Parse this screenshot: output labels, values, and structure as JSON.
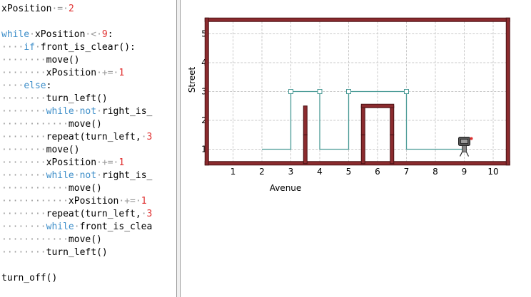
{
  "editor": {
    "lines": [
      {
        "indent": 0,
        "tokens": [
          {
            "t": "xPosition",
            "k": "tx"
          },
          {
            "t": " = ",
            "k": "sp"
          },
          {
            "t": "2",
            "k": "num"
          }
        ]
      },
      {
        "indent": 0,
        "tokens": []
      },
      {
        "indent": 0,
        "tokens": [
          {
            "t": "while",
            "k": "kw"
          },
          {
            "t": " ",
            "k": "sp"
          },
          {
            "t": "xPosition",
            "k": "tx"
          },
          {
            "t": " < ",
            "k": "sp"
          },
          {
            "t": "9",
            "k": "num"
          },
          {
            "t": ":",
            "k": "tx"
          }
        ]
      },
      {
        "indent": 4,
        "tokens": [
          {
            "t": "if",
            "k": "kw"
          },
          {
            "t": " ",
            "k": "sp"
          },
          {
            "t": "front_is_clear():",
            "k": "tx"
          }
        ]
      },
      {
        "indent": 8,
        "tokens": [
          {
            "t": "move()",
            "k": "tx"
          }
        ]
      },
      {
        "indent": 8,
        "tokens": [
          {
            "t": "xPosition",
            "k": "tx"
          },
          {
            "t": " += ",
            "k": "sp"
          },
          {
            "t": "1",
            "k": "num"
          }
        ]
      },
      {
        "indent": 4,
        "tokens": [
          {
            "t": "else",
            "k": "kw"
          },
          {
            "t": ":",
            "k": "tx"
          }
        ]
      },
      {
        "indent": 8,
        "tokens": [
          {
            "t": "turn_left()",
            "k": "tx"
          }
        ]
      },
      {
        "indent": 8,
        "tokens": [
          {
            "t": "while",
            "k": "kw"
          },
          {
            "t": " ",
            "k": "sp"
          },
          {
            "t": "not",
            "k": "kw"
          },
          {
            "t": " ",
            "k": "sp"
          },
          {
            "t": "right_is_",
            "k": "tx"
          }
        ]
      },
      {
        "indent": 12,
        "tokens": [
          {
            "t": "move()",
            "k": "tx"
          }
        ]
      },
      {
        "indent": 8,
        "tokens": [
          {
            "t": "repeat(turn_left,",
            "k": "tx"
          },
          {
            "t": " ",
            "k": "sp"
          },
          {
            "t": "3",
            "k": "num"
          }
        ]
      },
      {
        "indent": 8,
        "tokens": [
          {
            "t": "move()",
            "k": "tx"
          }
        ]
      },
      {
        "indent": 8,
        "tokens": [
          {
            "t": "xPosition",
            "k": "tx"
          },
          {
            "t": " += ",
            "k": "sp"
          },
          {
            "t": "1",
            "k": "num"
          }
        ]
      },
      {
        "indent": 8,
        "tokens": [
          {
            "t": "while",
            "k": "kw"
          },
          {
            "t": " ",
            "k": "sp"
          },
          {
            "t": "not",
            "k": "kw"
          },
          {
            "t": " ",
            "k": "sp"
          },
          {
            "t": "right_is_",
            "k": "tx"
          }
        ]
      },
      {
        "indent": 12,
        "tokens": [
          {
            "t": "move()",
            "k": "tx"
          }
        ]
      },
      {
        "indent": 12,
        "tokens": [
          {
            "t": "xPosition",
            "k": "tx"
          },
          {
            "t": " += ",
            "k": "sp"
          },
          {
            "t": "1",
            "k": "num"
          }
        ]
      },
      {
        "indent": 8,
        "tokens": [
          {
            "t": "repeat(turn_left,",
            "k": "tx"
          },
          {
            "t": " ",
            "k": "sp"
          },
          {
            "t": "3",
            "k": "num"
          }
        ]
      },
      {
        "indent": 8,
        "tokens": [
          {
            "t": "while",
            "k": "kw"
          },
          {
            "t": " ",
            "k": "sp"
          },
          {
            "t": "front_is_clea",
            "k": "tx"
          }
        ]
      },
      {
        "indent": 12,
        "tokens": [
          {
            "t": "move()",
            "k": "tx"
          }
        ]
      },
      {
        "indent": 8,
        "tokens": [
          {
            "t": "turn_left()",
            "k": "tx"
          }
        ]
      },
      {
        "indent": 0,
        "tokens": []
      },
      {
        "indent": 0,
        "tokens": [
          {
            "t": "turn_off()",
            "k": "tx"
          }
        ]
      }
    ]
  },
  "world": {
    "avenue_label": "Avenue",
    "street_label": "Street",
    "avenues": [
      "1",
      "2",
      "3",
      "4",
      "5",
      "6",
      "7",
      "8",
      "9",
      "10"
    ],
    "streets": [
      "1",
      "2",
      "3",
      "4",
      "5"
    ],
    "colors": {
      "wall": "#8b2b2e",
      "wall_edge": "#4a1215",
      "grid": "#c8c8c8",
      "trace": "#4a9a96",
      "robot_body": "#555555",
      "robot_accent": "#e03030"
    },
    "walls_east_of": [
      {
        "avenue": 3,
        "streets": [
          1,
          2
        ]
      },
      {
        "avenue": 5,
        "streets": [
          1,
          2
        ]
      },
      {
        "avenue": 6,
        "streets": [
          1,
          2
        ]
      }
    ],
    "walls_north_of": [
      {
        "street": 2,
        "avenues": [
          6
        ]
      }
    ],
    "trace_path": [
      [
        2,
        1
      ],
      [
        3,
        1
      ],
      [
        3,
        3
      ],
      [
        4,
        3
      ],
      [
        4,
        1
      ],
      [
        5,
        1
      ],
      [
        5,
        3
      ],
      [
        7,
        3
      ],
      [
        7,
        1
      ],
      [
        9,
        1
      ]
    ],
    "trace_markers": [
      [
        3,
        3
      ],
      [
        4,
        3
      ],
      [
        5,
        3
      ],
      [
        7,
        3
      ]
    ],
    "robot": {
      "avenue": 9,
      "street": 1,
      "facing": "east",
      "icon": "robot-icon"
    }
  }
}
